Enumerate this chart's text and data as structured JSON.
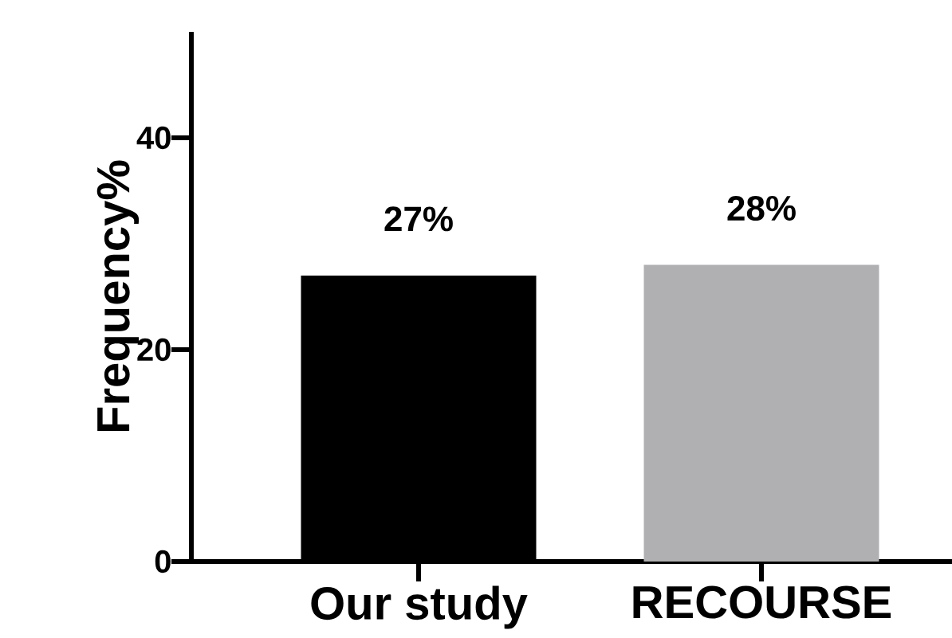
{
  "chart_data": {
    "type": "bar",
    "ylabel": "Frequency%",
    "categories": [
      "Our study",
      "RECOURSE"
    ],
    "values": [
      27,
      28
    ],
    "colors": [
      "#000000",
      "#b0b0b2"
    ],
    "value_labels": [
      "27%",
      "28%"
    ],
    "ylim": [
      0,
      50
    ],
    "yticks": [
      0,
      20,
      40
    ]
  }
}
